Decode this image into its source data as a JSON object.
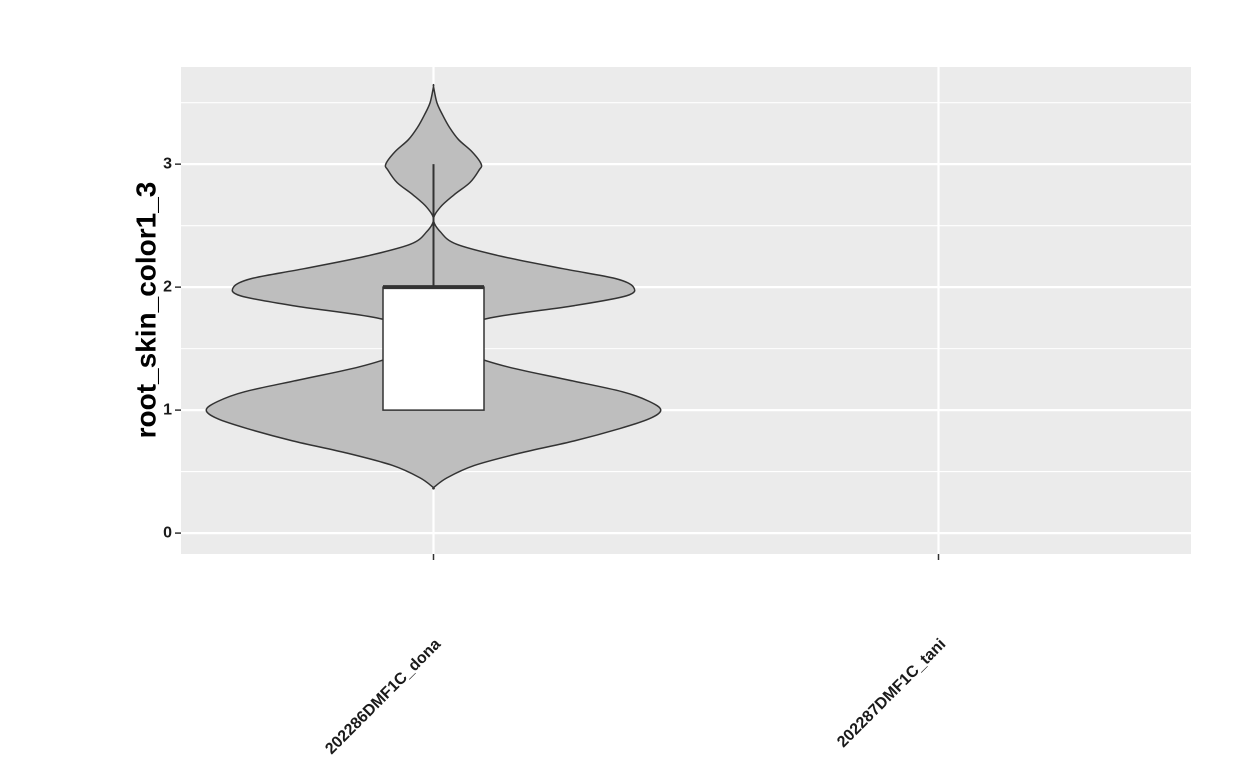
{
  "chart_data": {
    "type": "violin",
    "xlabel": "",
    "ylabel": "root_skin_color1_3",
    "categories": [
      "202286DMF1C_dona",
      "202287DMF1C_tani"
    ],
    "y_ticks": [
      0,
      1,
      2,
      3
    ],
    "ylim": [
      -0.17,
      3.79
    ],
    "grid": true,
    "series": [
      {
        "category": "202286DMF1C_dona",
        "violin": {
          "y_min": 0.37,
          "y_max": 3.63,
          "density_profile": [
            [
              0.37,
              0.0
            ],
            [
              0.45,
              0.06
            ],
            [
              0.55,
              0.18
            ],
            [
              0.65,
              0.38
            ],
            [
              0.75,
              0.62
            ],
            [
              0.85,
              0.82
            ],
            [
              0.93,
              0.95
            ],
            [
              1.0,
              1.0
            ],
            [
              1.07,
              0.95
            ],
            [
              1.15,
              0.83
            ],
            [
              1.25,
              0.58
            ],
            [
              1.35,
              0.33
            ],
            [
              1.45,
              0.16
            ],
            [
              1.55,
              0.08
            ],
            [
              1.65,
              0.1
            ],
            [
              1.75,
              0.25
            ],
            [
              1.85,
              0.62
            ],
            [
              1.93,
              0.85
            ],
            [
              2.0,
              0.88
            ],
            [
              2.07,
              0.8
            ],
            [
              2.15,
              0.57
            ],
            [
              2.25,
              0.3
            ],
            [
              2.35,
              0.1
            ],
            [
              2.45,
              0.03
            ],
            [
              2.55,
              0.0
            ],
            [
              2.65,
              0.03
            ],
            [
              2.75,
              0.09
            ],
            [
              2.85,
              0.16
            ],
            [
              2.95,
              0.2
            ],
            [
              3.0,
              0.21
            ],
            [
              3.1,
              0.17
            ],
            [
              3.2,
              0.11
            ],
            [
              3.3,
              0.07
            ],
            [
              3.4,
              0.04
            ],
            [
              3.5,
              0.015
            ],
            [
              3.63,
              0.0
            ]
          ]
        },
        "box": {
          "q1": 1,
          "median": 2,
          "q3": 2,
          "whisker_low": 1,
          "whisker_high": 3
        }
      },
      {
        "category": "202287DMF1C_tani",
        "violin": null,
        "box": null
      }
    ],
    "colors": {
      "panel_background": "#EBEBEB",
      "grid": "#FFFFFF",
      "violin_fill": "#BEBEBE",
      "violin_stroke": "#333333",
      "box_fill": "#FFFFFF",
      "box_stroke": "#333333"
    }
  }
}
